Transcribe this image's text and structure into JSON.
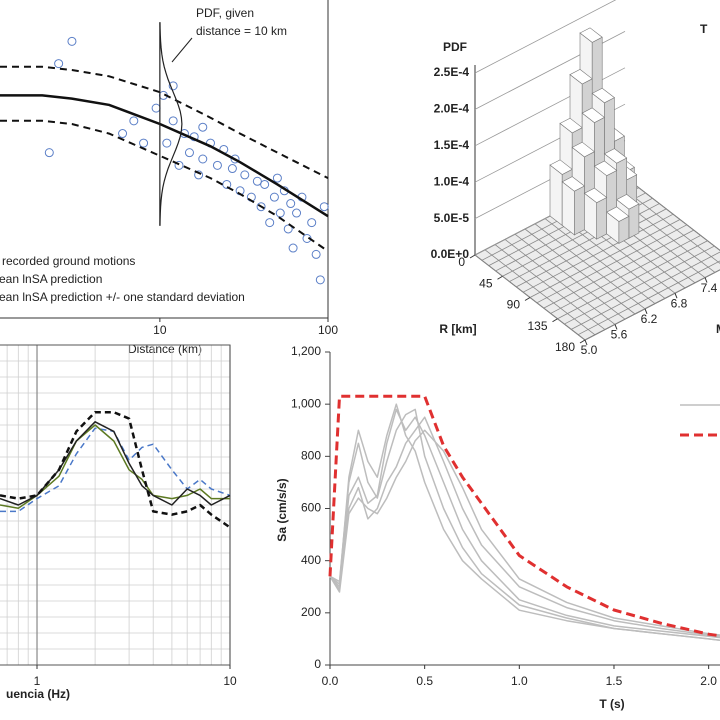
{
  "chart_data": [
    {
      "type": "scatter",
      "xlabel": "Distance (km)",
      "xscale": "log",
      "xlim": [
        1.12,
        100
      ],
      "xticks": [
        10,
        100
      ],
      "ylim": [
        0,
        1
      ],
      "annotation": [
        "PDF, given",
        "distance = 10 km"
      ],
      "pdf_distance": 10,
      "points": {
        "name": "recorded ground motions",
        "color": "#5b7fc7",
        "x": [
          3,
          2.2,
          6,
          8,
          9.5,
          10.5,
          11,
          12,
          13,
          14,
          15,
          16,
          17,
          18,
          20,
          22,
          24,
          25,
          27,
          30,
          32,
          35,
          38,
          40,
          42,
          45,
          48,
          50,
          52,
          55,
          58,
          60,
          62,
          65,
          70,
          75,
          80,
          85,
          90,
          95,
          2.5,
          7,
          12,
          18,
          28
        ],
        "y": [
          0.87,
          0.52,
          0.58,
          0.55,
          0.66,
          0.7,
          0.55,
          0.62,
          0.48,
          0.58,
          0.52,
          0.57,
          0.45,
          0.5,
          0.55,
          0.48,
          0.53,
          0.42,
          0.47,
          0.4,
          0.45,
          0.38,
          0.43,
          0.35,
          0.42,
          0.3,
          0.38,
          0.44,
          0.33,
          0.4,
          0.28,
          0.36,
          0.22,
          0.33,
          0.38,
          0.25,
          0.3,
          0.2,
          0.12,
          0.35,
          0.8,
          0.62,
          0.73,
          0.6,
          0.5
        ]
      },
      "x": [
        1.12,
        2,
        3,
        5,
        10,
        20,
        30,
        50,
        100
      ],
      "series": [
        {
          "name": "Mean lnSA prediction",
          "color": "#111111",
          "values": [
            0.7,
            0.7,
            0.69,
            0.67,
            0.61,
            0.54,
            0.49,
            0.42,
            0.32
          ]
        },
        {
          "name": "Mean lnSA prediction +/- one standard deviation",
          "color": "#111111",
          "dash": true,
          "upper": [
            0.79,
            0.79,
            0.78,
            0.76,
            0.71,
            0.63,
            0.58,
            0.52,
            0.44
          ],
          "lower": [
            0.62,
            0.62,
            0.61,
            0.58,
            0.51,
            0.44,
            0.39,
            0.32,
            0.21
          ]
        }
      ]
    },
    {
      "type": "bar3d",
      "title": "T",
      "color": "#d2d2d2",
      "zlabel": "PDF",
      "zlim": [
        0,
        0.00025
      ],
      "zticks": [
        {
          "value": 0,
          "label": "0.0E+0"
        },
        {
          "value": 5e-05,
          "label": "5.0E-5"
        },
        {
          "value": 0.0001,
          "label": "1.0E-4"
        },
        {
          "value": 0.00015,
          "label": "1.5E-4"
        },
        {
          "value": 0.0002,
          "label": "2.0E-4"
        },
        {
          "value": 0.00025,
          "label": "2.5E-4"
        }
      ],
      "xlabel": "R [km]",
      "xlim": [
        0,
        180
      ],
      "xticks": [
        0,
        45,
        90,
        135,
        180
      ],
      "ylabel": "M",
      "ylim": [
        5,
        8
      ],
      "yticks": [
        {
          "value": 5,
          "label": "5.0"
        },
        5.6,
        6.2,
        6.8,
        7.4
      ],
      "bars": {
        "x": [
          10,
          10,
          10,
          10,
          10,
          10,
          30,
          30,
          30,
          30,
          30,
          30,
          50,
          50,
          50,
          50,
          70,
          70
        ],
        "y": [
          7.6,
          7.4,
          7.2,
          7.0,
          6.8,
          6.6,
          7.6,
          7.4,
          7.2,
          7.0,
          6.8,
          6.6,
          7.4,
          7.2,
          7.0,
          6.8,
          7.2,
          7.0
        ],
        "values": [
          6e-05,
          0.00012,
          0.00023,
          0.00018,
          0.00012,
          7e-05,
          5e-05,
          0.0001,
          0.00016,
          0.00014,
          0.0001,
          6e-05,
          6e-05,
          9e-05,
          8e-05,
          5e-05,
          4e-05,
          3e-05
        ]
      }
    },
    {
      "type": "line",
      "xlabel": "uencia (Hz)",
      "xscale": "log",
      "xlim": [
        0.643,
        10
      ],
      "xticks": [
        1,
        10
      ],
      "ylim": [
        0,
        1
      ],
      "grid": true,
      "x": [
        0.643,
        0.8,
        1,
        1.3,
        1.6,
        2,
        2.5,
        3,
        3.5,
        4,
        5,
        6,
        7,
        8,
        10
      ],
      "series": [
        {
          "color": "#4a78c8",
          "dash": true,
          "values": [
            0.48,
            0.48,
            0.52,
            0.56,
            0.66,
            0.74,
            0.73,
            0.64,
            0.68,
            0.69,
            0.61,
            0.55,
            0.58,
            0.55,
            0.53
          ]
        },
        {
          "color": "#5d7a22",
          "values": [
            0.5,
            0.49,
            0.53,
            0.59,
            0.7,
            0.75,
            0.7,
            0.61,
            0.58,
            0.53,
            0.52,
            0.53,
            0.55,
            0.52,
            0.52
          ]
        },
        {
          "color": "#222222",
          "values": [
            0.52,
            0.5,
            0.53,
            0.61,
            0.7,
            0.76,
            0.73,
            0.63,
            0.56,
            0.53,
            0.5,
            0.55,
            0.53,
            0.5,
            0.53
          ]
        },
        {
          "color": "#111111",
          "dash": true,
          "width": 2.5,
          "values": [
            0.53,
            0.52,
            0.53,
            0.61,
            0.73,
            0.79,
            0.79,
            0.77,
            0.61,
            0.48,
            0.47,
            0.48,
            0.5,
            0.47,
            0.43
          ]
        }
      ]
    },
    {
      "type": "line",
      "xlabel": "T (s)",
      "ylabel": "Sa (cm/s/s)",
      "xlim": [
        0,
        2.06
      ],
      "ylim": [
        0,
        1200
      ],
      "xticks": [
        {
          "value": 0,
          "label": "0.0"
        },
        0.5,
        {
          "value": 1,
          "label": "1.0"
        },
        1.5,
        {
          "value": 2,
          "label": "2.0"
        }
      ],
      "yticks": [
        0,
        200,
        400,
        600,
        800,
        {
          "value": 1000,
          "label": "1,000"
        },
        {
          "value": 1200,
          "label": "1,200"
        }
      ],
      "x": [
        0,
        0.05,
        0.1,
        0.15,
        0.2,
        0.25,
        0.3,
        0.35,
        0.4,
        0.45,
        0.5,
        0.6,
        0.7,
        0.8,
        1.0,
        1.25,
        1.5,
        1.75,
        2.0,
        2.06
      ],
      "series": [
        {
          "color": "#bdbdbd",
          "values": [
            340,
            300,
            650,
            720,
            620,
            650,
            850,
            980,
            900,
            950,
            880,
            700,
            520,
            400,
            250,
            190,
            150,
            130,
            110,
            105
          ]
        },
        {
          "color": "#bdbdbd",
          "values": [
            340,
            320,
            700,
            850,
            700,
            640,
            780,
            900,
            960,
            980,
            800,
            600,
            450,
            350,
            230,
            180,
            140,
            120,
            100,
            95
          ]
        },
        {
          "color": "#bdbdbd",
          "values": [
            340,
            290,
            600,
            680,
            560,
            600,
            700,
            760,
            850,
            900,
            950,
            780,
            600,
            460,
            300,
            220,
            170,
            140,
            115,
            110
          ]
        },
        {
          "color": "#bdbdbd",
          "values": [
            340,
            310,
            720,
            900,
            780,
            720,
            880,
            1000,
            880,
            820,
            700,
            520,
            400,
            330,
            210,
            170,
            140,
            120,
            100,
            95
          ]
        },
        {
          "color": "#bdbdbd",
          "values": [
            340,
            280,
            580,
            640,
            600,
            580,
            640,
            720,
            780,
            860,
            900,
            820,
            680,
            520,
            330,
            240,
            180,
            150,
            120,
            115
          ]
        },
        {
          "color": "#e03030",
          "dash": true,
          "width": 3,
          "values": [
            340,
            1030,
            1030,
            1030,
            1030,
            1030,
            1030,
            1030,
            1030,
            1030,
            1030,
            840,
            720,
            620,
            420,
            300,
            211,
            160,
            118,
            112
          ]
        }
      ]
    }
  ]
}
